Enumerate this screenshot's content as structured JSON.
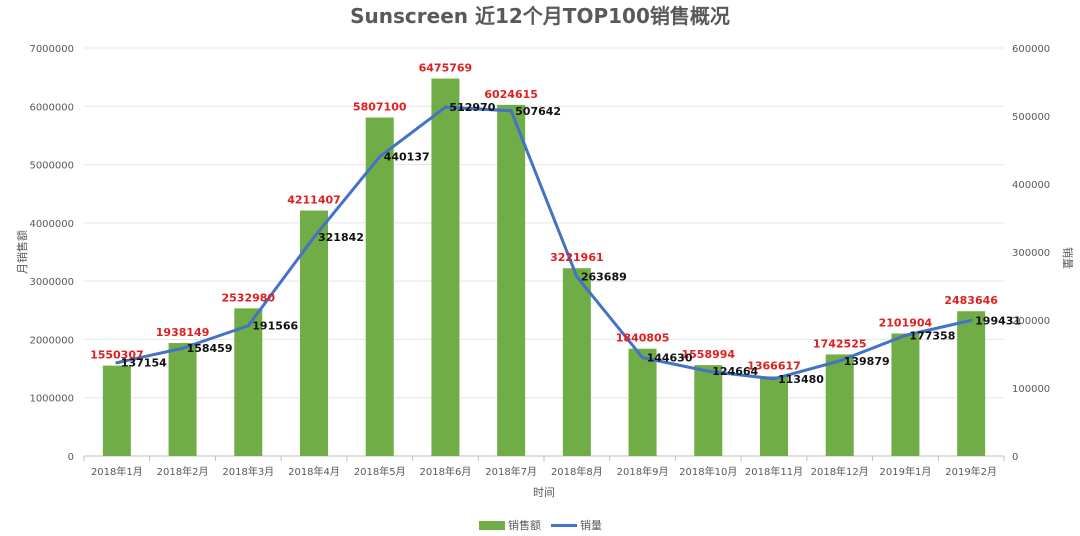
{
  "chart_data": {
    "type": "bar",
    "title": "Sunscreen 近12个月TOP100销售概况",
    "xlabel": "时间",
    "ylabel": "月销售额",
    "y2label": "销量",
    "categories": [
      "2018年1月",
      "2018年2月",
      "2018年3月",
      "2018年4月",
      "2018年5月",
      "2018年6月",
      "2018年7月",
      "2018年8月",
      "2018年9月",
      "2018年10月",
      "2018年11月",
      "2018年12月",
      "2019年1月",
      "2019年2月"
    ],
    "ylim": [
      0,
      7000000
    ],
    "y2lim": [
      0,
      600000
    ],
    "yticks": [
      "0",
      "1000000",
      "2000000",
      "3000000",
      "4000000",
      "5000000",
      "6000000",
      "7000000"
    ],
    "y2ticks": [
      "0",
      "100000",
      "200000",
      "300000",
      "400000",
      "500000",
      "600000"
    ],
    "grid": true,
    "legend_position": "bottom",
    "series": [
      {
        "name": "销售额",
        "type": "bar",
        "axis": "left",
        "color": "#70ad47",
        "label_color": "#e02020",
        "values": [
          1550307,
          1938149,
          2532980,
          4211407,
          5807100,
          6475769,
          6024615,
          3221961,
          1840805,
          1558994,
          1366617,
          1742525,
          2101904,
          2483646
        ]
      },
      {
        "name": "销量",
        "type": "line",
        "axis": "right",
        "color": "#4472c4",
        "label_color": "#111111",
        "values": [
          137154,
          158459,
          191566,
          321842,
          440137,
          512970,
          507642,
          263689,
          144630,
          124664,
          113480,
          139879,
          177358,
          199431
        ]
      }
    ]
  }
}
